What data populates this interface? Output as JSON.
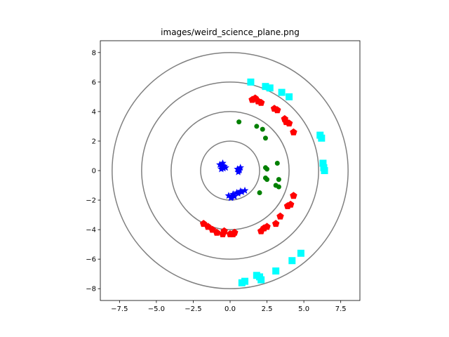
{
  "chart_data": {
    "type": "scatter",
    "title": "images/weird_science_plane.png",
    "xlabel": "",
    "ylabel": "",
    "xlim": [
      -8.8,
      8.8
    ],
    "ylim": [
      -8.8,
      8.8
    ],
    "grid": false,
    "x_ticks": [
      -7.5,
      -5.0,
      -2.5,
      0.0,
      2.5,
      5.0,
      7.5
    ],
    "x_tick_labels": [
      "−7.5",
      "−5.0",
      "−2.5",
      "0.0",
      "2.5",
      "5.0",
      "7.5"
    ],
    "y_ticks": [
      -8,
      -6,
      -4,
      -2,
      0,
      2,
      4,
      6,
      8
    ],
    "y_tick_labels": [
      "−8",
      "−6",
      "−4",
      "−2",
      "0",
      "2",
      "4",
      "6",
      "8"
    ],
    "circles": [
      {
        "radius": 2,
        "color": "#808080"
      },
      {
        "radius": 4,
        "color": "#808080"
      },
      {
        "radius": 6,
        "color": "#808080"
      },
      {
        "radius": 8,
        "color": "#808080"
      }
    ],
    "series": [
      {
        "color": "#0000ff",
        "marker": "star",
        "points": [
          [
            -0.7,
            0.4
          ],
          [
            -0.5,
            0.2
          ],
          [
            -0.4,
            0.3
          ],
          [
            -0.6,
            0.1
          ],
          [
            -0.5,
            0.5
          ],
          [
            -0.3,
            0.2
          ],
          [
            -0.6,
            0.35
          ],
          [
            -0.45,
            0.15
          ],
          [
            0.5,
            0.1
          ],
          [
            0.6,
            0.0
          ],
          [
            0.7,
            0.2
          ],
          [
            0.55,
            -0.1
          ],
          [
            0.65,
            0.05
          ],
          [
            -0.1,
            -1.7
          ],
          [
            0.1,
            -1.8
          ],
          [
            0.2,
            -1.6
          ],
          [
            0.3,
            -1.75
          ],
          [
            0.45,
            -1.5
          ],
          [
            0.55,
            -1.55
          ],
          [
            0.7,
            -1.4
          ],
          [
            0.8,
            -1.45
          ],
          [
            1.0,
            -1.35
          ],
          [
            0.05,
            -1.85
          ]
        ]
      },
      {
        "color": "#008000",
        "marker": "circle",
        "points": [
          [
            0.6,
            3.3
          ],
          [
            1.8,
            3.0
          ],
          [
            2.2,
            2.8
          ],
          [
            2.4,
            2.2
          ],
          [
            2.4,
            0.2
          ],
          [
            2.5,
            0.1
          ],
          [
            2.4,
            -0.5
          ],
          [
            2.5,
            -0.6
          ],
          [
            3.2,
            0.5
          ],
          [
            3.3,
            -0.6
          ],
          [
            3.1,
            -1.0
          ],
          [
            3.3,
            -1.1
          ],
          [
            2.0,
            -1.5
          ]
        ]
      },
      {
        "color": "#ff0000",
        "marker": "pentagon",
        "points": [
          [
            1.5,
            4.8
          ],
          [
            1.7,
            4.9
          ],
          [
            1.9,
            4.7
          ],
          [
            2.1,
            4.6
          ],
          [
            3.0,
            4.2
          ],
          [
            3.2,
            4.1
          ],
          [
            3.7,
            3.5
          ],
          [
            3.8,
            3.3
          ],
          [
            4.0,
            3.2
          ],
          [
            4.3,
            2.6
          ],
          [
            4.3,
            -1.7
          ],
          [
            3.9,
            -2.4
          ],
          [
            4.1,
            -2.3
          ],
          [
            3.4,
            -3.1
          ],
          [
            3.1,
            -3.6
          ],
          [
            2.5,
            -3.8
          ],
          [
            2.3,
            -3.9
          ],
          [
            2.1,
            -4.1
          ],
          [
            -1.8,
            -3.6
          ],
          [
            -1.5,
            -3.8
          ],
          [
            -1.2,
            -4.0
          ],
          [
            -0.9,
            -4.2
          ],
          [
            -0.5,
            -4.3
          ],
          [
            -0.4,
            -4.1
          ],
          [
            0.0,
            -4.3
          ],
          [
            0.2,
            -4.3
          ],
          [
            0.3,
            -4.2
          ]
        ]
      },
      {
        "color": "#00ffff",
        "marker": "square",
        "points": [
          [
            1.4,
            6.0
          ],
          [
            2.4,
            5.7
          ],
          [
            2.7,
            5.6
          ],
          [
            3.5,
            5.3
          ],
          [
            4.0,
            5.0
          ],
          [
            6.1,
            2.4
          ],
          [
            6.2,
            2.2
          ],
          [
            6.3,
            0.5
          ],
          [
            6.35,
            0.2
          ],
          [
            6.4,
            0.0
          ],
          [
            4.8,
            -5.6
          ],
          [
            4.2,
            -6.1
          ],
          [
            3.1,
            -6.8
          ],
          [
            2.0,
            -7.2
          ],
          [
            1.8,
            -7.1
          ],
          [
            2.1,
            -7.4
          ],
          [
            1.0,
            -7.5
          ],
          [
            0.8,
            -7.6
          ]
        ]
      }
    ]
  }
}
